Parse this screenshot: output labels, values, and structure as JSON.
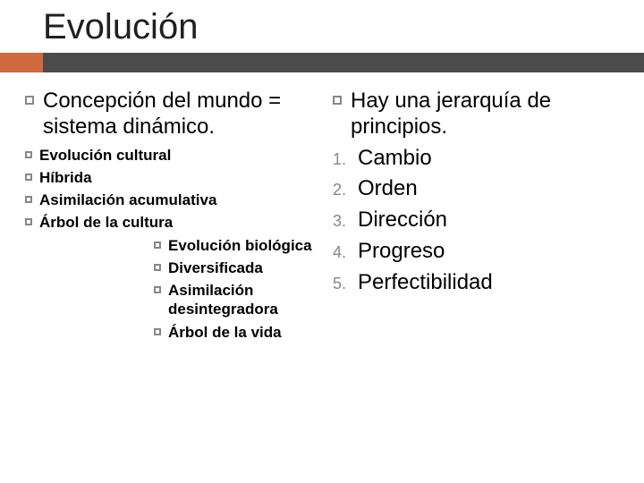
{
  "colors": {
    "accent": "#d06a3e",
    "rule": "#4b4b4b",
    "bullet_border": "#878787",
    "num_color": "#878787",
    "text": "#000000",
    "background": "#ffffff"
  },
  "title": "Evolución",
  "left": {
    "main": "Concepción del mundo = sistema dinámico.",
    "sub": [
      "Evolución cultural",
      "Híbrida",
      "Asimilación acumulativa",
      "Árbol de la cultura"
    ],
    "sub2": [
      "Evolución biológica",
      "Diversificada",
      "Asimilación desintegradora",
      "Árbol de la vida"
    ]
  },
  "right": {
    "main": "Hay una jerarquía de principios.",
    "numbered": [
      {
        "n": "1.",
        "t": "Cambio"
      },
      {
        "n": "2.",
        "t": "Orden"
      },
      {
        "n": "3.",
        "t": "Dirección"
      },
      {
        "n": "4.",
        "t": "Progreso"
      },
      {
        "n": "5.",
        "t": "Perfectibilidad"
      }
    ]
  }
}
